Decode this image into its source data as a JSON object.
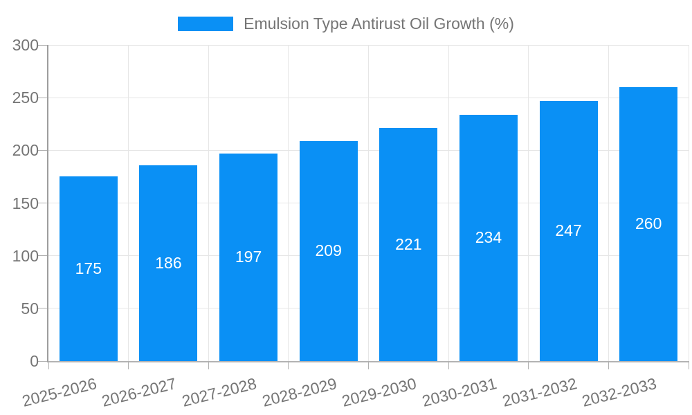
{
  "legend": {
    "label": "Emulsion Type Antirust Oil Growth (%)"
  },
  "colors": {
    "bar": "#0a90f5",
    "axis_text": "#757575",
    "bar_label": "#ffffff",
    "grid": "#e6e6e6",
    "tick": "#b0b0b0"
  },
  "chart_data": {
    "type": "bar",
    "title": "",
    "xlabel": "",
    "ylabel": "",
    "categories": [
      "2025-2026",
      "2026-2027",
      "2027-2028",
      "2028-2029",
      "2029-2030",
      "2030-2031",
      "2031-2032",
      "2032-2033"
    ],
    "series": [
      {
        "name": "Emulsion Type Antirust Oil Growth (%)",
        "values": [
          175,
          186,
          197,
          209,
          221,
          234,
          247,
          260
        ]
      }
    ],
    "bar_value_labels": [
      175,
      186,
      197,
      209,
      221,
      234,
      247,
      260
    ],
    "ylim": [
      0,
      300
    ],
    "yticks": [
      0,
      50,
      100,
      150,
      200,
      250,
      300
    ],
    "grid": true,
    "legend_position": "top"
  }
}
